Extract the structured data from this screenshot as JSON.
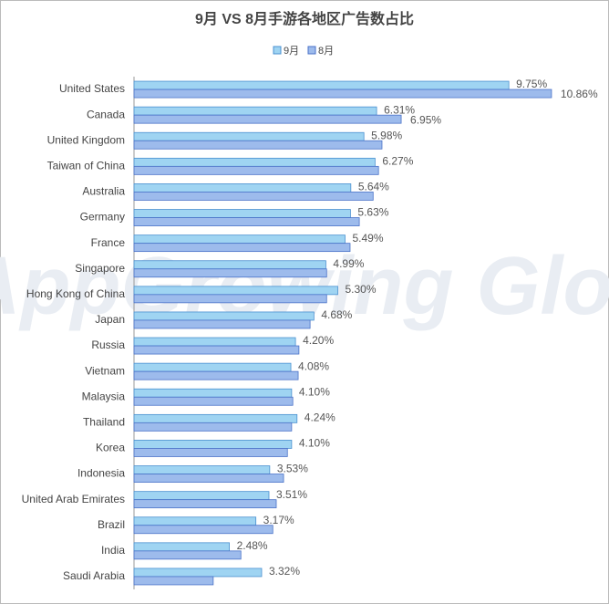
{
  "chart_data": {
    "type": "hbar",
    "title": "9月 VS 8月手游各地区广告数占比",
    "watermark": "AppGrowing Global",
    "categories": [
      "United States",
      "Canada",
      "United Kingdom",
      "Taiwan of China",
      "Australia",
      "Germany",
      "France",
      "Singapore",
      "Hong Kong of China",
      "Japan",
      "Russia",
      "Vietnam",
      "Malaysia",
      "Thailand",
      "Korea",
      "Indonesia",
      "United Arab Emirates",
      "Brazil",
      "India",
      "Saudi Arabia"
    ],
    "series": [
      {
        "name": "9月",
        "color": "#9fd4f2",
        "stroke": "#4a90d0",
        "values": [
          9.75,
          6.31,
          5.98,
          6.27,
          5.64,
          5.63,
          5.49,
          4.99,
          5.3,
          4.68,
          4.2,
          4.08,
          4.1,
          4.24,
          4.1,
          3.53,
          3.51,
          3.17,
          2.48,
          3.32
        ],
        "value_labels": [
          "9.75%",
          "6.31%",
          "5.98%",
          "6.27%",
          "5.64%",
          "5.63%",
          "5.49%",
          "4.99%",
          "5.30%",
          "4.68%",
          "4.20%",
          "4.08%",
          "4.10%",
          "4.24%",
          "4.10%",
          "3.53%",
          "3.51%",
          "3.17%",
          "2.48%",
          "3.32%"
        ]
      },
      {
        "name": "8月",
        "color": "#9dbbec",
        "stroke": "#4a72c8",
        "values": [
          10.86,
          6.95,
          6.45,
          6.36,
          6.22,
          5.86,
          5.62,
          5.01,
          5.01,
          4.58,
          4.29,
          4.27,
          4.13,
          4.1,
          3.99,
          3.89,
          3.7,
          3.61,
          2.78,
          2.06
        ],
        "value_labels": [
          "10.86%",
          "6.95%",
          null,
          null,
          null,
          null,
          null,
          null,
          null,
          null,
          null,
          null,
          null,
          null,
          null,
          null,
          null,
          null,
          null,
          null
        ]
      }
    ],
    "xlim": [
      0,
      12
    ],
    "legend": "top"
  }
}
